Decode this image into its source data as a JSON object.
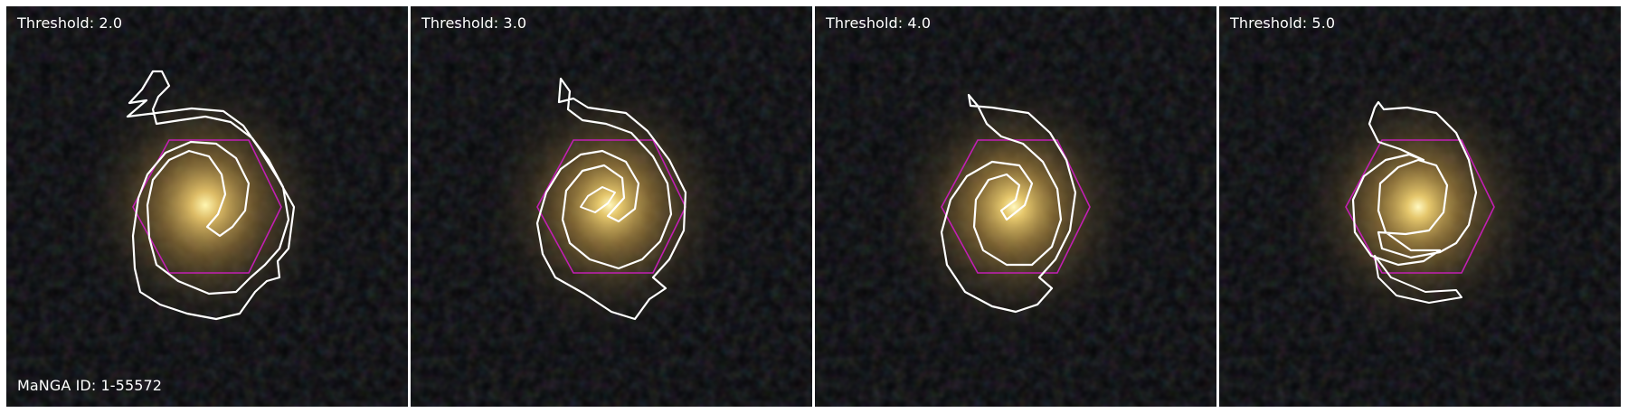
{
  "panels": [
    {
      "threshold_label": "Threshold: 2.0",
      "id_label": "MaNGA ID: 1-55572"
    },
    {
      "threshold_label": "Threshold: 3.0"
    },
    {
      "threshold_label": "Threshold: 4.0"
    },
    {
      "threshold_label": "Threshold: 5.0"
    }
  ],
  "colors": {
    "background": "#050608",
    "contour": "#ffffff",
    "hexagon": "#c21fb3",
    "galaxy_core": "#fff3a0",
    "galaxy_halo": "#8a6a2e"
  },
  "icons": [
    "galaxy-image",
    "spiral-arm-contour",
    "ifu-hexagon-footprint"
  ]
}
